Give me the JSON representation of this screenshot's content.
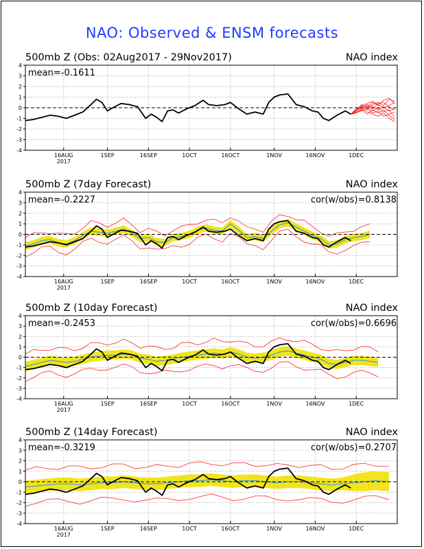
{
  "page": {
    "title": "NAO: Observed & ENSM forecasts"
  },
  "chart_data": [
    {
      "type": "line",
      "title": "500mb Z (Obs: 02Aug2017 - 29Nov2017)",
      "right_label": "NAO index",
      "mean_label": "mean=-0.1611",
      "cor_label": "",
      "ylim": [
        -4,
        4
      ],
      "yticks": [
        4,
        3,
        2,
        1,
        0,
        -1,
        -2,
        -3,
        -4
      ],
      "xticks": [
        {
          "label": "16AUG",
          "sub": "2017",
          "day": 14
        },
        {
          "label": "1SEP",
          "sub": "",
          "day": 30
        },
        {
          "label": "16SEP",
          "sub": "",
          "day": 45
        },
        {
          "label": "1OCT",
          "sub": "",
          "day": 60
        },
        {
          "label": "16OCT",
          "sub": "",
          "day": 75
        },
        {
          "label": "1NOV",
          "sub": "",
          "day": 91
        },
        {
          "label": "16NOV",
          "sub": "",
          "day": 106
        },
        {
          "label": "1DEC",
          "sub": "",
          "day": 121
        }
      ],
      "grid": true,
      "observed": {
        "x": [
          0,
          3,
          6,
          9,
          12,
          15,
          18,
          21,
          24,
          26,
          28,
          30,
          32,
          35,
          38,
          41,
          44,
          46,
          48,
          50,
          52,
          54,
          56,
          59,
          62,
          65,
          67,
          70,
          73,
          75,
          78,
          81,
          84,
          87,
          89,
          91,
          93,
          96,
          99,
          102,
          105,
          107,
          109,
          111,
          114,
          117,
          119
        ],
        "y": [
          -1.2,
          -1.1,
          -0.9,
          -0.7,
          -0.8,
          -1.0,
          -0.7,
          -0.4,
          0.3,
          0.8,
          0.5,
          -0.3,
          0.0,
          0.4,
          0.3,
          0.1,
          -1.0,
          -0.6,
          -0.9,
          -1.3,
          -0.3,
          -0.2,
          -0.5,
          -0.1,
          0.2,
          0.7,
          0.3,
          0.2,
          0.3,
          0.5,
          -0.1,
          -0.6,
          -0.4,
          -0.6,
          0.5,
          1.0,
          1.2,
          1.3,
          0.3,
          0.1,
          -0.3,
          -0.4,
          -1.0,
          -1.2,
          -0.7,
          -0.3,
          -0.6
        ]
      },
      "forecast_members": {
        "x": [
          119,
          121,
          123,
          125,
          127,
          129,
          131,
          133,
          135
        ],
        "members": [
          [
            -0.6,
            -0.3,
            0.1,
            -0.2,
            0.3,
            0.5,
            0.2,
            0.8,
            0.6
          ],
          [
            -0.6,
            -0.4,
            -0.2,
            0.1,
            -0.3,
            0.0,
            -0.4,
            -0.2,
            -0.9
          ],
          [
            -0.6,
            -0.2,
            0.3,
            0.0,
            0.5,
            0.2,
            0.7,
            0.9,
            0.4
          ],
          [
            -0.6,
            -0.5,
            -0.1,
            -0.4,
            -0.6,
            -0.8,
            -0.5,
            -1.0,
            -1.3
          ],
          [
            -0.6,
            -0.3,
            0.0,
            0.3,
            0.1,
            -0.2,
            0.1,
            -0.3,
            -0.1
          ],
          [
            -0.6,
            -0.1,
            0.2,
            0.4,
            0.6,
            0.3,
            0.0,
            0.2,
            0.5
          ],
          [
            -0.6,
            -0.4,
            -0.3,
            -0.1,
            -0.5,
            -0.3,
            -0.8,
            -0.6,
            -0.4
          ],
          [
            -0.6,
            -0.2,
            0.1,
            0.2,
            -0.1,
            0.4,
            0.5,
            0.1,
            -0.2
          ],
          [
            -0.6,
            -0.5,
            -0.2,
            -0.6,
            -0.2,
            -0.5,
            -0.2,
            -0.7,
            -1.1
          ]
        ]
      }
    },
    {
      "type": "line",
      "title": "500mb Z (7day Forecast)",
      "right_label": "NAO index",
      "mean_label": "mean=-0.2227",
      "cor_label": "cor(w/obs)=0.8138",
      "ylim": [
        -4,
        4
      ],
      "yticks": [
        4,
        3,
        2,
        1,
        0,
        -1,
        -2,
        -3,
        -4
      ],
      "xticks": [
        {
          "label": "16AUG",
          "sub": "2017",
          "day": 14
        },
        {
          "label": "1SEP",
          "sub": "",
          "day": 30
        },
        {
          "label": "16SEP",
          "sub": "",
          "day": 45
        },
        {
          "label": "1OCT",
          "sub": "",
          "day": 60
        },
        {
          "label": "16OCT",
          "sub": "",
          "day": 75
        },
        {
          "label": "1NOV",
          "sub": "",
          "day": 91
        },
        {
          "label": "16NOV",
          "sub": "",
          "day": 106
        },
        {
          "label": "1DEC",
          "sub": "",
          "day": 121
        }
      ],
      "grid": true,
      "observed_x_end": 119,
      "forecast": {
        "x": [
          0,
          3,
          6,
          9,
          12,
          15,
          18,
          21,
          24,
          27,
          30,
          33,
          36,
          39,
          42,
          45,
          48,
          51,
          54,
          57,
          60,
          63,
          66,
          69,
          72,
          75,
          78,
          81,
          84,
          87,
          90,
          93,
          96,
          99,
          102,
          105,
          108,
          111,
          114,
          117,
          120,
          123,
          126
        ],
        "mean": [
          -1.1,
          -0.9,
          -0.6,
          -0.5,
          -0.8,
          -0.9,
          -0.6,
          -0.1,
          0.3,
          0.2,
          0.1,
          0.3,
          0.5,
          0.1,
          -0.4,
          -0.3,
          -0.7,
          -0.8,
          -0.3,
          -0.2,
          0.0,
          0.4,
          0.6,
          0.4,
          0.3,
          1.0,
          0.4,
          -0.3,
          -0.2,
          -0.4,
          0.3,
          0.9,
          1.1,
          0.7,
          0.3,
          -0.1,
          -0.4,
          -1.0,
          -0.9,
          -0.5,
          -0.3,
          -0.2,
          0.0
        ],
        "spread": [
          0.35,
          0.35,
          0.35,
          0.35,
          0.35,
          0.35,
          0.35,
          0.35,
          0.35,
          0.35,
          0.35,
          0.35,
          0.35,
          0.35,
          0.35,
          0.35,
          0.35,
          0.35,
          0.35,
          0.35,
          0.35,
          0.35,
          0.35,
          0.35,
          0.35,
          0.35,
          0.35,
          0.35,
          0.35,
          0.35,
          0.35,
          0.35,
          0.35,
          0.35,
          0.35,
          0.35,
          0.35,
          0.35,
          0.35,
          0.35,
          0.35,
          0.35,
          0.35
        ],
        "envelope": 0.8
      }
    },
    {
      "type": "line",
      "title": "500mb Z (10day Forecast)",
      "right_label": "NAO index",
      "mean_label": "mean=-0.2453",
      "cor_label": "cor(w/obs)=0.6696",
      "ylim": [
        -4,
        4
      ],
      "yticks": [
        4,
        3,
        2,
        1,
        0,
        -1,
        -2,
        -3,
        -4
      ],
      "xticks": [
        {
          "label": "16AUG",
          "sub": "2017",
          "day": 14
        },
        {
          "label": "1SEP",
          "sub": "",
          "day": 30
        },
        {
          "label": "16SEP",
          "sub": "",
          "day": 45
        },
        {
          "label": "1OCT",
          "sub": "",
          "day": 60
        },
        {
          "label": "16OCT",
          "sub": "",
          "day": 75
        },
        {
          "label": "1NOV",
          "sub": "",
          "day": 91
        },
        {
          "label": "16NOV",
          "sub": "",
          "day": 106
        },
        {
          "label": "1DEC",
          "sub": "",
          "day": 121
        }
      ],
      "grid": true,
      "observed_x_end": 119,
      "forecast": {
        "x": [
          0,
          3,
          6,
          9,
          12,
          15,
          18,
          21,
          24,
          27,
          30,
          33,
          36,
          39,
          42,
          45,
          48,
          51,
          54,
          57,
          60,
          63,
          66,
          69,
          72,
          75,
          78,
          81,
          84,
          87,
          90,
          93,
          96,
          99,
          102,
          105,
          108,
          111,
          114,
          117,
          120,
          123,
          126,
          129
        ],
        "mean": [
          -0.9,
          -0.7,
          -0.5,
          -0.3,
          -0.4,
          -0.5,
          -0.4,
          -0.2,
          0.0,
          0.1,
          0.2,
          0.2,
          0.3,
          0.2,
          -0.1,
          -0.2,
          -0.4,
          -0.3,
          -0.2,
          0.0,
          0.1,
          0.2,
          0.3,
          0.4,
          0.3,
          0.5,
          0.3,
          0.0,
          -0.1,
          0.0,
          0.2,
          0.5,
          0.6,
          0.4,
          0.2,
          0.0,
          -0.2,
          -0.6,
          -0.7,
          -0.5,
          -0.3,
          -0.3,
          -0.4,
          -0.5
        ],
        "spread": [
          0.45,
          0.45,
          0.45,
          0.45,
          0.45,
          0.45,
          0.45,
          0.45,
          0.45,
          0.45,
          0.45,
          0.45,
          0.45,
          0.45,
          0.45,
          0.45,
          0.45,
          0.45,
          0.45,
          0.45,
          0.45,
          0.45,
          0.45,
          0.45,
          0.45,
          0.45,
          0.45,
          0.45,
          0.45,
          0.45,
          0.45,
          0.45,
          0.45,
          0.45,
          0.45,
          0.45,
          0.45,
          0.45,
          0.45,
          0.45,
          0.45,
          0.45,
          0.45,
          0.45
        ],
        "envelope": 1.2
      }
    },
    {
      "type": "line",
      "title": "500mb Z (14day Forecast)",
      "right_label": "NAO index",
      "mean_label": "mean=-0.3219",
      "cor_label": "cor(w/obs)=0.2707",
      "ylim": [
        -4,
        4
      ],
      "yticks": [
        4,
        3,
        2,
        1,
        0,
        -1,
        -2,
        -3,
        -4
      ],
      "xticks": [
        {
          "label": "16AUG",
          "sub": "2017",
          "day": 14
        },
        {
          "label": "1SEP",
          "sub": "",
          "day": 30
        },
        {
          "label": "16SEP",
          "sub": "",
          "day": 45
        },
        {
          "label": "1OCT",
          "sub": "",
          "day": 60
        },
        {
          "label": "16OCT",
          "sub": "",
          "day": 75
        },
        {
          "label": "1NOV",
          "sub": "",
          "day": 91
        },
        {
          "label": "16NOV",
          "sub": "",
          "day": 106
        },
        {
          "label": "1DEC",
          "sub": "",
          "day": 121
        }
      ],
      "grid": true,
      "observed_x_end": 119,
      "forecast": {
        "x": [
          0,
          4,
          8,
          12,
          16,
          20,
          24,
          28,
          32,
          36,
          40,
          44,
          48,
          52,
          56,
          60,
          64,
          68,
          72,
          76,
          80,
          84,
          88,
          92,
          96,
          100,
          104,
          108,
          112,
          116,
          120,
          124,
          128,
          133
        ],
        "mean": [
          -0.5,
          -0.4,
          -0.3,
          -0.2,
          -0.2,
          -0.3,
          -0.2,
          -0.1,
          -0.1,
          0.0,
          -0.1,
          -0.2,
          -0.2,
          -0.1,
          0.0,
          0.1,
          0.1,
          0.2,
          0.1,
          0.0,
          0.1,
          0.1,
          0.0,
          -0.1,
          0.0,
          0.0,
          -0.1,
          -0.2,
          -0.3,
          -0.2,
          -0.1,
          0.0,
          0.1,
          0.0
        ],
        "spread": [
          0.6,
          0.6,
          0.6,
          0.6,
          0.6,
          0.6,
          0.6,
          0.6,
          0.6,
          0.6,
          0.6,
          0.6,
          0.6,
          0.6,
          0.6,
          0.6,
          0.6,
          0.6,
          0.6,
          0.6,
          0.6,
          0.6,
          0.6,
          0.6,
          0.6,
          0.6,
          0.6,
          0.6,
          0.6,
          0.6,
          0.8,
          0.9,
          0.9,
          0.9
        ],
        "envelope": 1.6
      }
    }
  ],
  "colors": {
    "title": "#1f3bff",
    "observed": "#000000",
    "ensemble_mean": "#1e8fff",
    "spread_fill": "#f2e41c",
    "envelope": "#ff2020",
    "grid": "#b0b0b0"
  }
}
